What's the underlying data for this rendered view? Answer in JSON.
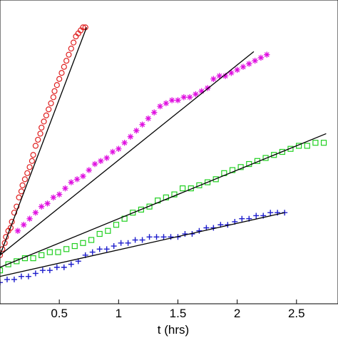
{
  "chart_data": {
    "type": "scatter",
    "title": "",
    "xlabel": "t (hrs)",
    "ylabel": "",
    "xlim": [
      0,
      2.85
    ],
    "ylim": [
      0,
      1
    ],
    "grid": false,
    "x_ticks": [
      0.5,
      1,
      1.5,
      2,
      2.5
    ],
    "x_tick_labels": [
      "0.5",
      "1",
      "1.5",
      "2",
      "2.5"
    ],
    "series": [
      {
        "marker": "circle",
        "color": "#e02020",
        "fit_line": [
          [
            0.0,
            0.16
          ],
          [
            0.73,
            0.91
          ]
        ],
        "points": [
          [
            0.0,
            0.16
          ],
          [
            0.02,
            0.18
          ],
          [
            0.04,
            0.2
          ],
          [
            0.05,
            0.22
          ],
          [
            0.07,
            0.24
          ],
          [
            0.09,
            0.25
          ],
          [
            0.1,
            0.27
          ],
          [
            0.12,
            0.3
          ],
          [
            0.14,
            0.32
          ],
          [
            0.16,
            0.35
          ],
          [
            0.18,
            0.37
          ],
          [
            0.19,
            0.39
          ],
          [
            0.21,
            0.41
          ],
          [
            0.23,
            0.43
          ],
          [
            0.25,
            0.45
          ],
          [
            0.27,
            0.47
          ],
          [
            0.28,
            0.49
          ],
          [
            0.3,
            0.52
          ],
          [
            0.32,
            0.54
          ],
          [
            0.34,
            0.56
          ],
          [
            0.35,
            0.58
          ],
          [
            0.37,
            0.6
          ],
          [
            0.39,
            0.62
          ],
          [
            0.41,
            0.64
          ],
          [
            0.43,
            0.66
          ],
          [
            0.45,
            0.68
          ],
          [
            0.46,
            0.7
          ],
          [
            0.48,
            0.72
          ],
          [
            0.5,
            0.74
          ],
          [
            0.52,
            0.76
          ],
          [
            0.54,
            0.78
          ],
          [
            0.56,
            0.8
          ],
          [
            0.58,
            0.82
          ],
          [
            0.6,
            0.84
          ],
          [
            0.62,
            0.86
          ],
          [
            0.64,
            0.88
          ],
          [
            0.66,
            0.89
          ],
          [
            0.68,
            0.9
          ],
          [
            0.7,
            0.91
          ],
          [
            0.72,
            0.91
          ]
        ]
      },
      {
        "marker": "asterisk",
        "color": "#e010e0",
        "fit_line": [
          [
            0.0,
            0.16
          ],
          [
            2.14,
            0.83
          ]
        ],
        "points": [
          [
            0.15,
            0.24
          ],
          [
            0.2,
            0.26
          ],
          [
            0.25,
            0.28
          ],
          [
            0.3,
            0.3
          ],
          [
            0.35,
            0.32
          ],
          [
            0.4,
            0.33
          ],
          [
            0.45,
            0.35
          ],
          [
            0.5,
            0.36
          ],
          [
            0.55,
            0.38
          ],
          [
            0.6,
            0.4
          ],
          [
            0.65,
            0.41
          ],
          [
            0.7,
            0.42
          ],
          [
            0.75,
            0.44
          ],
          [
            0.8,
            0.46
          ],
          [
            0.85,
            0.47
          ],
          [
            0.9,
            0.48
          ],
          [
            0.95,
            0.5
          ],
          [
            1.0,
            0.51
          ],
          [
            1.05,
            0.53
          ],
          [
            1.1,
            0.55
          ],
          [
            1.15,
            0.57
          ],
          [
            1.2,
            0.59
          ],
          [
            1.25,
            0.61
          ],
          [
            1.3,
            0.63
          ],
          [
            1.35,
            0.65
          ],
          [
            1.4,
            0.66
          ],
          [
            1.45,
            0.67
          ],
          [
            1.5,
            0.67
          ],
          [
            1.55,
            0.68
          ],
          [
            1.6,
            0.68
          ],
          [
            1.65,
            0.69
          ],
          [
            1.7,
            0.7
          ],
          [
            1.75,
            0.71
          ],
          [
            1.8,
            0.74
          ],
          [
            1.85,
            0.75
          ],
          [
            1.9,
            0.75
          ],
          [
            1.95,
            0.76
          ],
          [
            2.0,
            0.77
          ],
          [
            2.05,
            0.78
          ],
          [
            2.1,
            0.79
          ],
          [
            2.15,
            0.8
          ],
          [
            2.2,
            0.81
          ],
          [
            2.25,
            0.82
          ]
        ]
      },
      {
        "marker": "square",
        "color": "#20d020",
        "fit_line": [
          [
            0.0,
            0.12
          ],
          [
            2.75,
            0.56
          ]
        ],
        "points": [
          [
            0.0,
            0.11
          ],
          [
            0.07,
            0.13
          ],
          [
            0.14,
            0.14
          ],
          [
            0.21,
            0.15
          ],
          [
            0.28,
            0.15
          ],
          [
            0.35,
            0.16
          ],
          [
            0.42,
            0.17
          ],
          [
            0.49,
            0.17
          ],
          [
            0.56,
            0.18
          ],
          [
            0.63,
            0.19
          ],
          [
            0.7,
            0.2
          ],
          [
            0.77,
            0.21
          ],
          [
            0.84,
            0.23
          ],
          [
            0.91,
            0.24
          ],
          [
            0.98,
            0.26
          ],
          [
            1.05,
            0.28
          ],
          [
            1.12,
            0.3
          ],
          [
            1.19,
            0.31
          ],
          [
            1.26,
            0.32
          ],
          [
            1.33,
            0.34
          ],
          [
            1.4,
            0.35
          ],
          [
            1.47,
            0.36
          ],
          [
            1.54,
            0.38
          ],
          [
            1.61,
            0.38
          ],
          [
            1.68,
            0.39
          ],
          [
            1.75,
            0.4
          ],
          [
            1.82,
            0.41
          ],
          [
            1.89,
            0.43
          ],
          [
            1.96,
            0.44
          ],
          [
            2.03,
            0.45
          ],
          [
            2.1,
            0.46
          ],
          [
            2.17,
            0.47
          ],
          [
            2.24,
            0.48
          ],
          [
            2.31,
            0.49
          ],
          [
            2.38,
            0.5
          ],
          [
            2.45,
            0.51
          ],
          [
            2.52,
            0.52
          ],
          [
            2.59,
            0.52
          ],
          [
            2.66,
            0.53
          ],
          [
            2.73,
            0.53
          ]
        ]
      },
      {
        "marker": "plus",
        "color": "#1c1ccc",
        "fit_line": [
          [
            0.0,
            0.09
          ],
          [
            2.4,
            0.3
          ]
        ],
        "points": [
          [
            0.0,
            0.07
          ],
          [
            0.06,
            0.08
          ],
          [
            0.12,
            0.08
          ],
          [
            0.18,
            0.09
          ],
          [
            0.24,
            0.09
          ],
          [
            0.3,
            0.1
          ],
          [
            0.36,
            0.11
          ],
          [
            0.42,
            0.11
          ],
          [
            0.48,
            0.12
          ],
          [
            0.54,
            0.12
          ],
          [
            0.6,
            0.13
          ],
          [
            0.66,
            0.14
          ],
          [
            0.72,
            0.16
          ],
          [
            0.78,
            0.17
          ],
          [
            0.84,
            0.18
          ],
          [
            0.9,
            0.18
          ],
          [
            0.96,
            0.19
          ],
          [
            1.02,
            0.2
          ],
          [
            1.08,
            0.2
          ],
          [
            1.14,
            0.21
          ],
          [
            1.2,
            0.21
          ],
          [
            1.26,
            0.22
          ],
          [
            1.32,
            0.22
          ],
          [
            1.38,
            0.22
          ],
          [
            1.44,
            0.22
          ],
          [
            1.5,
            0.22
          ],
          [
            1.56,
            0.23
          ],
          [
            1.62,
            0.23
          ],
          [
            1.68,
            0.24
          ],
          [
            1.74,
            0.25
          ],
          [
            1.8,
            0.25
          ],
          [
            1.86,
            0.26
          ],
          [
            1.92,
            0.26
          ],
          [
            1.98,
            0.27
          ],
          [
            2.04,
            0.28
          ],
          [
            2.1,
            0.28
          ],
          [
            2.16,
            0.29
          ],
          [
            2.22,
            0.29
          ],
          [
            2.28,
            0.3
          ],
          [
            2.34,
            0.3
          ],
          [
            2.4,
            0.3
          ]
        ]
      }
    ]
  }
}
